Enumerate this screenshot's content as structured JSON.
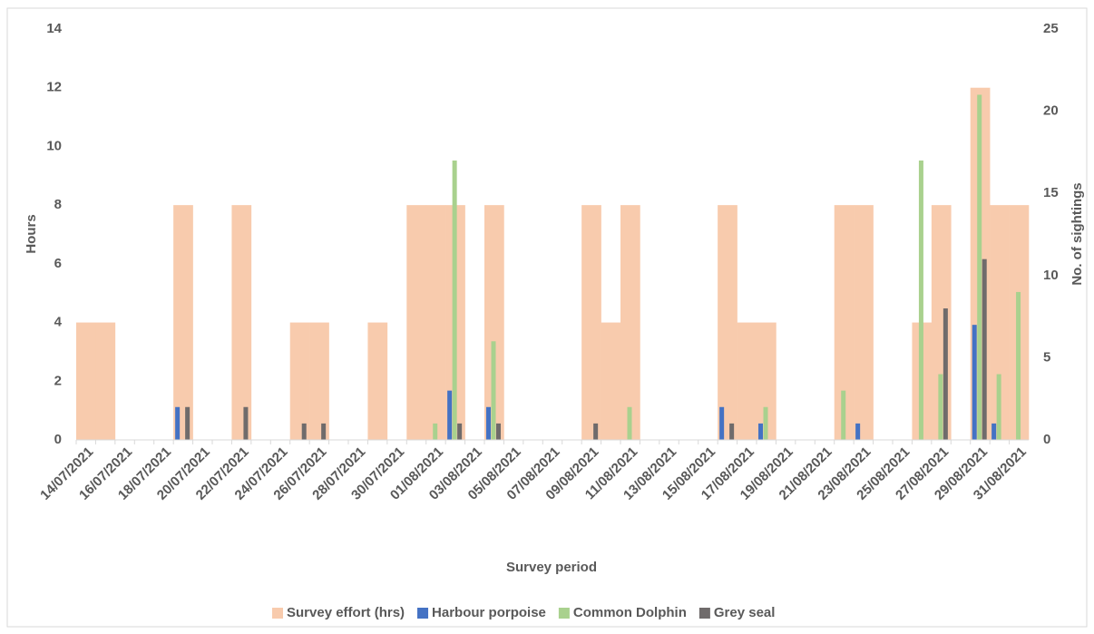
{
  "chart_data": {
    "type": "bar",
    "x_label": "Survey period",
    "y_label": "Hours",
    "y2_label": "No. of sightings",
    "categories": [
      "14/07/2021",
      null,
      "16/07/2021",
      null,
      "18/07/2021",
      null,
      "20/07/2021",
      null,
      "22/07/2021",
      null,
      "24/07/2021",
      null,
      "26/07/2021",
      null,
      "28/07/2021",
      null,
      "30/07/2021",
      null,
      "01/08/2021",
      null,
      "03/08/2021",
      null,
      "05/08/2021",
      null,
      "07/08/2021",
      null,
      "09/08/2021",
      null,
      "11/08/2021",
      null,
      "13/08/2021",
      null,
      "15/08/2021",
      null,
      "17/08/2021",
      null,
      "19/08/2021",
      null,
      "21/08/2021",
      null,
      "23/08/2021",
      null,
      "25/08/2021",
      null,
      "27/08/2021",
      null,
      "29/08/2021",
      null,
      "31/08/2021"
    ],
    "series": [
      {
        "name": "Survey effort (hrs)",
        "color": "#f8cbad",
        "values": [
          4,
          4,
          0,
          0,
          0,
          8,
          0,
          0,
          8,
          0,
          0,
          4,
          4,
          0,
          0,
          4,
          0,
          8,
          8,
          8,
          0,
          8,
          0,
          0,
          0,
          0,
          8,
          4,
          8,
          0,
          0,
          0,
          0,
          8,
          4,
          4,
          0,
          0,
          0,
          8,
          8,
          0,
          0,
          4,
          8,
          0,
          12,
          8,
          8
        ]
      },
      {
        "name": "Harbour porpoise",
        "color": "#4472c4",
        "axis": "y2",
        "values": [
          0,
          0,
          0,
          0,
          0,
          2,
          0,
          0,
          0,
          0,
          0,
          0,
          0,
          0,
          0,
          0,
          0,
          0,
          0,
          3,
          0,
          2,
          0,
          0,
          0,
          0,
          0,
          0,
          0,
          0,
          0,
          0,
          0,
          2,
          0,
          1,
          0,
          0,
          0,
          0,
          1,
          0,
          0,
          0,
          0,
          0,
          7,
          1,
          0
        ]
      },
      {
        "name": "Common Dolphin",
        "color": "#a9d18e",
        "axis": "y2",
        "values": [
          0,
          0,
          0,
          0,
          0,
          0,
          0,
          0,
          0,
          0,
          0,
          0,
          0,
          0,
          0,
          0,
          0,
          0,
          1,
          17,
          0,
          6,
          0,
          0,
          0,
          0,
          0,
          0,
          2,
          0,
          0,
          0,
          0,
          0,
          0,
          2,
          0,
          0,
          0,
          3,
          0,
          0,
          0,
          17,
          4,
          0,
          21,
          4,
          9
        ]
      },
      {
        "name": "Grey seal",
        "color": "#6f6b6b",
        "axis": "y2",
        "values": [
          0,
          0,
          0,
          0,
          0,
          2,
          0,
          0,
          2,
          0,
          0,
          1,
          1,
          0,
          0,
          0,
          0,
          0,
          0,
          1,
          0,
          1,
          0,
          0,
          0,
          0,
          1,
          0,
          0,
          0,
          0,
          0,
          0,
          1,
          0,
          0,
          0,
          0,
          0,
          0,
          0,
          0,
          0,
          0,
          8,
          0,
          11,
          0,
          0
        ]
      }
    ],
    "ylim": [
      0,
      14
    ],
    "yticks": [
      0,
      2,
      4,
      6,
      8,
      10,
      12,
      14
    ],
    "y2lim": [
      0,
      25
    ],
    "y2ticks": [
      0,
      5,
      10,
      15,
      20,
      25
    ]
  }
}
